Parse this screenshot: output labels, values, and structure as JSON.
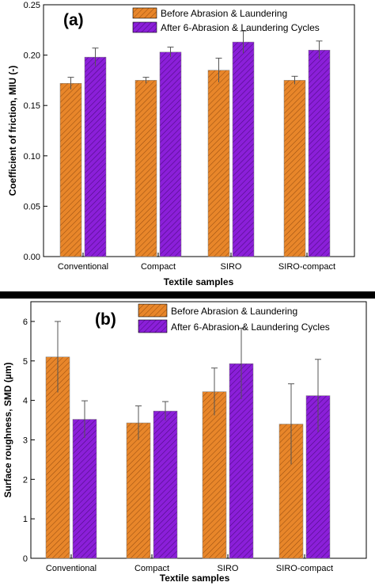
{
  "colors": {
    "before": "#e8862a",
    "after": "#8b1fd9",
    "divider": "#000000",
    "errorbar": "#555555"
  },
  "chart_data": [
    {
      "type": "bar",
      "panel_label": "(a)",
      "categories": [
        "Conventional",
        "Compact",
        "SIRO",
        "SIRO-compact"
      ],
      "series": [
        {
          "name": "Before Abrasion & Laundering",
          "values": [
            0.172,
            0.175,
            0.185,
            0.175
          ],
          "errors": [
            0.006,
            0.003,
            0.012,
            0.004
          ]
        },
        {
          "name": "After 6-Abrasion & Laundering Cycles",
          "values": [
            0.198,
            0.203,
            0.213,
            0.205
          ],
          "errors": [
            0.009,
            0.005,
            0.011,
            0.009
          ]
        }
      ],
      "xlabel": "Textile samples",
      "ylabel": "Coefficient of friction, MIU (-)",
      "ylim": [
        0,
        0.25
      ],
      "yticks": [
        "0.00",
        "0.05",
        "0.10",
        "0.15",
        "0.20",
        "0.25"
      ],
      "legend": "top-right",
      "grid": false
    },
    {
      "type": "bar",
      "panel_label": "(b)",
      "categories": [
        "Conventional",
        "Compact",
        "SIRO",
        "SIRO-compact"
      ],
      "series": [
        {
          "name": "Before Abrasion & Laundering",
          "values": [
            5.1,
            3.43,
            4.22,
            3.4
          ],
          "errors": [
            0.9,
            0.43,
            0.6,
            1.02
          ]
        },
        {
          "name": "After 6-Abrasion & Laundering Cycles",
          "values": [
            3.52,
            3.73,
            4.93,
            4.12
          ],
          "errors": [
            0.47,
            0.24,
            0.9,
            0.92
          ]
        }
      ],
      "xlabel": "Textile samples",
      "ylabel": "Surface roughness, SMD (µm)",
      "ylim": [
        0,
        6.5
      ],
      "yticks": [
        "0",
        "1",
        "2",
        "3",
        "4",
        "5",
        "6"
      ],
      "legend": "top-right",
      "grid": false
    }
  ]
}
